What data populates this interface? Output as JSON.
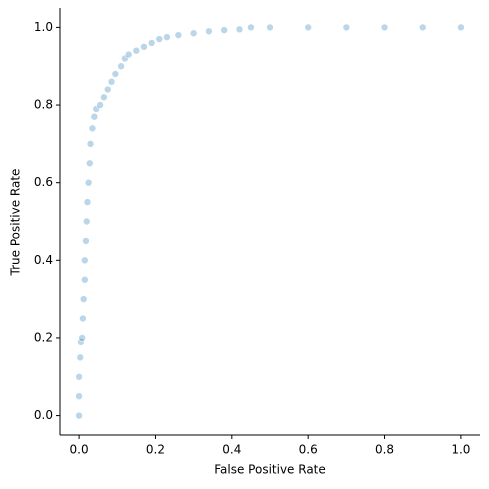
{
  "chart_data": {
    "type": "scatter",
    "x_label": "False Positive Rate",
    "y_label": "True Positive Rate",
    "color": "#1f77b4",
    "xlim": [
      -0.05,
      1.05
    ],
    "ylim": [
      -0.05,
      1.05
    ],
    "xticks": [
      {
        "value": 0,
        "label": "0.0"
      },
      0.2,
      0.4,
      0.6,
      0.8,
      {
        "value": 1,
        "label": "1.0"
      }
    ],
    "yticks": [
      {
        "value": 0,
        "label": "0.0"
      },
      0.2,
      0.4,
      0.6,
      0.8,
      {
        "value": 1,
        "label": "1.0"
      }
    ],
    "x": [
      0,
      0,
      0,
      0.003,
      0.005,
      0.008,
      0.01,
      0.012,
      0.015,
      0.015,
      0.018,
      0.02,
      0.022,
      0.025,
      0.028,
      0.03,
      0.035,
      0.04,
      0.045,
      0.055,
      0.065,
      0.075,
      0.085,
      0.095,
      0.11,
      0.12,
      0.13,
      0.15,
      0.17,
      0.19,
      0.21,
      0.23,
      0.26,
      0.3,
      0.34,
      0.38,
      0.42,
      0.45,
      0.5,
      0.6,
      0.7,
      0.8,
      0.9,
      1
    ],
    "y": [
      0,
      0.05,
      0.1,
      0.15,
      0.19,
      0.2,
      0.25,
      0.3,
      0.35,
      0.4,
      0.45,
      0.5,
      0.55,
      0.6,
      0.65,
      0.7,
      0.74,
      0.77,
      0.79,
      0.8,
      0.82,
      0.84,
      0.86,
      0.88,
      0.9,
      0.92,
      0.93,
      0.94,
      0.95,
      0.96,
      0.97,
      0.975,
      0.98,
      0.985,
      0.99,
      0.993,
      0.995,
      1,
      1,
      1,
      1,
      1,
      1,
      1
    ]
  }
}
